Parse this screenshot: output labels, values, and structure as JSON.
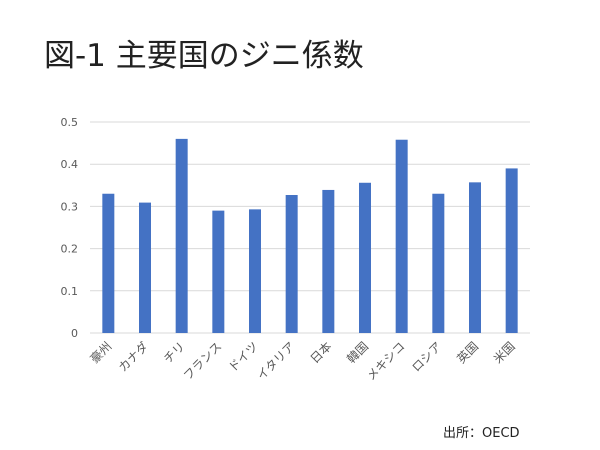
{
  "chart_data": {
    "type": "bar",
    "title": "図-1 主要国のジニ係数",
    "categories": [
      "豪州",
      "カナダ",
      "チリ",
      "フランス",
      "ドイツ",
      "イタリア",
      "日本",
      "韓国",
      "メキシコ",
      "ロシア",
      "英国",
      "米国"
    ],
    "values": [
      0.33,
      0.309,
      0.46,
      0.29,
      0.293,
      0.327,
      0.339,
      0.356,
      0.458,
      0.33,
      0.357,
      0.39
    ],
    "yticks": [
      "0",
      "0.1",
      "0.2",
      "0.3",
      "0.4",
      "0.5"
    ],
    "ylim": [
      0,
      0.5
    ],
    "xlabel": "",
    "ylabel": "",
    "grid": true,
    "bar_color": "#4472C4"
  },
  "source": "出所：OECD"
}
